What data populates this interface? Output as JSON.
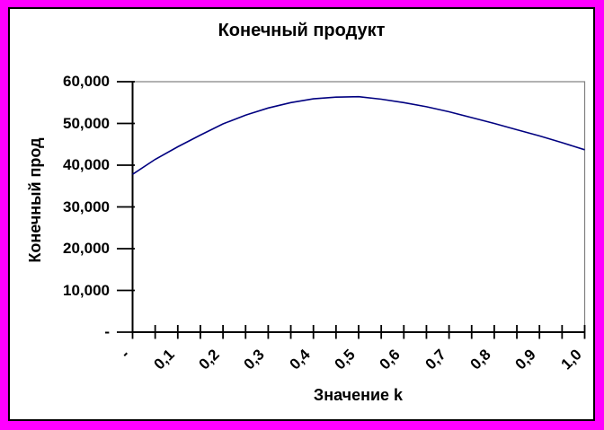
{
  "frame": {
    "border_color": "#FF00FF",
    "chart_background": "#FFFFFF",
    "chart_border_color": "#000000"
  },
  "chart": {
    "title": "Конечный продукт",
    "y_axis": {
      "title": "Конечный прод",
      "tick_labels": [
        "60,000",
        "50,000",
        "40,000",
        "30,000",
        "20,000",
        "10,000",
        "-"
      ]
    },
    "x_axis": {
      "title": "Значение k",
      "tick_labels": [
        "-",
        "0,1",
        "0,2",
        "0,3",
        "0,4",
        "0,5",
        "0,6",
        "0,7",
        "0,8",
        "0,9",
        "1,0"
      ]
    }
  },
  "chart_data": {
    "type": "line",
    "title": "Конечный продукт",
    "xlabel": "Значение k",
    "ylabel": "Конечный прод",
    "x": [
      0,
      0.05,
      0.1,
      0.15,
      0.2,
      0.25,
      0.3,
      0.35,
      0.4,
      0.45,
      0.5,
      0.55,
      0.6,
      0.65,
      0.7,
      0.75,
      0.8,
      0.85,
      0.9,
      0.95,
      1.0
    ],
    "values": [
      37800,
      41400,
      44400,
      47200,
      49900,
      52000,
      53700,
      55000,
      55900,
      56300,
      56400,
      55800,
      55000,
      54000,
      52800,
      51400,
      50000,
      48500,
      47000,
      45400,
      43700
    ],
    "xlim": [
      0,
      1.0
    ],
    "ylim": [
      0,
      60000
    ],
    "y_tick_step": 10000,
    "x_major_tick_step": 0.1,
    "x_minor_tick_step": 0.05,
    "grid": false,
    "legend": false,
    "line_color": "#000080",
    "axis_color": "#000000",
    "plot_border_color": "#808080"
  }
}
